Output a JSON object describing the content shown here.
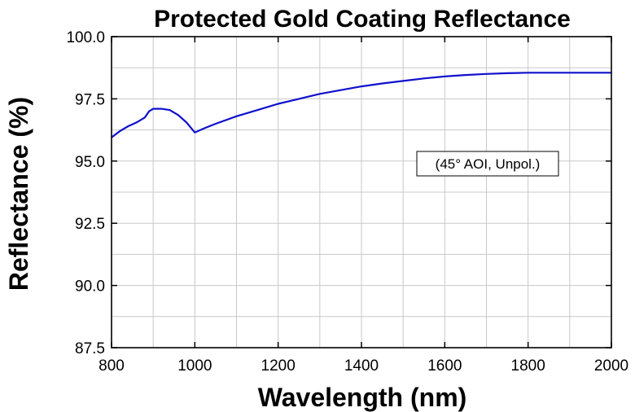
{
  "chart_data": {
    "type": "line",
    "title": "Protected Gold Coating Reflectance",
    "xlabel": "Wavelength (nm)",
    "ylabel": "Reflectance (%)",
    "xlim": [
      800,
      2000
    ],
    "ylim": [
      87.5,
      100.0
    ],
    "xticks": [
      "800",
      "1000",
      "1200",
      "1400",
      "1600",
      "1800",
      "2000"
    ],
    "yticks": [
      "87.5",
      "90.0",
      "92.5",
      "95.0",
      "97.5",
      "100.0"
    ],
    "grid": true,
    "annotation": "(45° AOI, Unpol.)",
    "series": [
      {
        "color": "#1010cc",
        "x": [
          800,
          820,
          840,
          860,
          880,
          890,
          900,
          920,
          940,
          960,
          980,
          1000,
          1020,
          1050,
          1100,
          1150,
          1200,
          1250,
          1300,
          1350,
          1400,
          1450,
          1500,
          1550,
          1600,
          1650,
          1700,
          1750,
          1800,
          1850,
          1900,
          1950,
          2000
        ],
        "y": [
          95.95,
          96.2,
          96.4,
          96.55,
          96.75,
          97.0,
          97.1,
          97.1,
          97.05,
          96.85,
          96.55,
          96.15,
          96.3,
          96.5,
          96.8,
          97.05,
          97.3,
          97.5,
          97.7,
          97.85,
          98.0,
          98.12,
          98.22,
          98.32,
          98.4,
          98.46,
          98.5,
          98.53,
          98.55,
          98.55,
          98.55,
          98.55,
          98.55
        ]
      }
    ]
  }
}
